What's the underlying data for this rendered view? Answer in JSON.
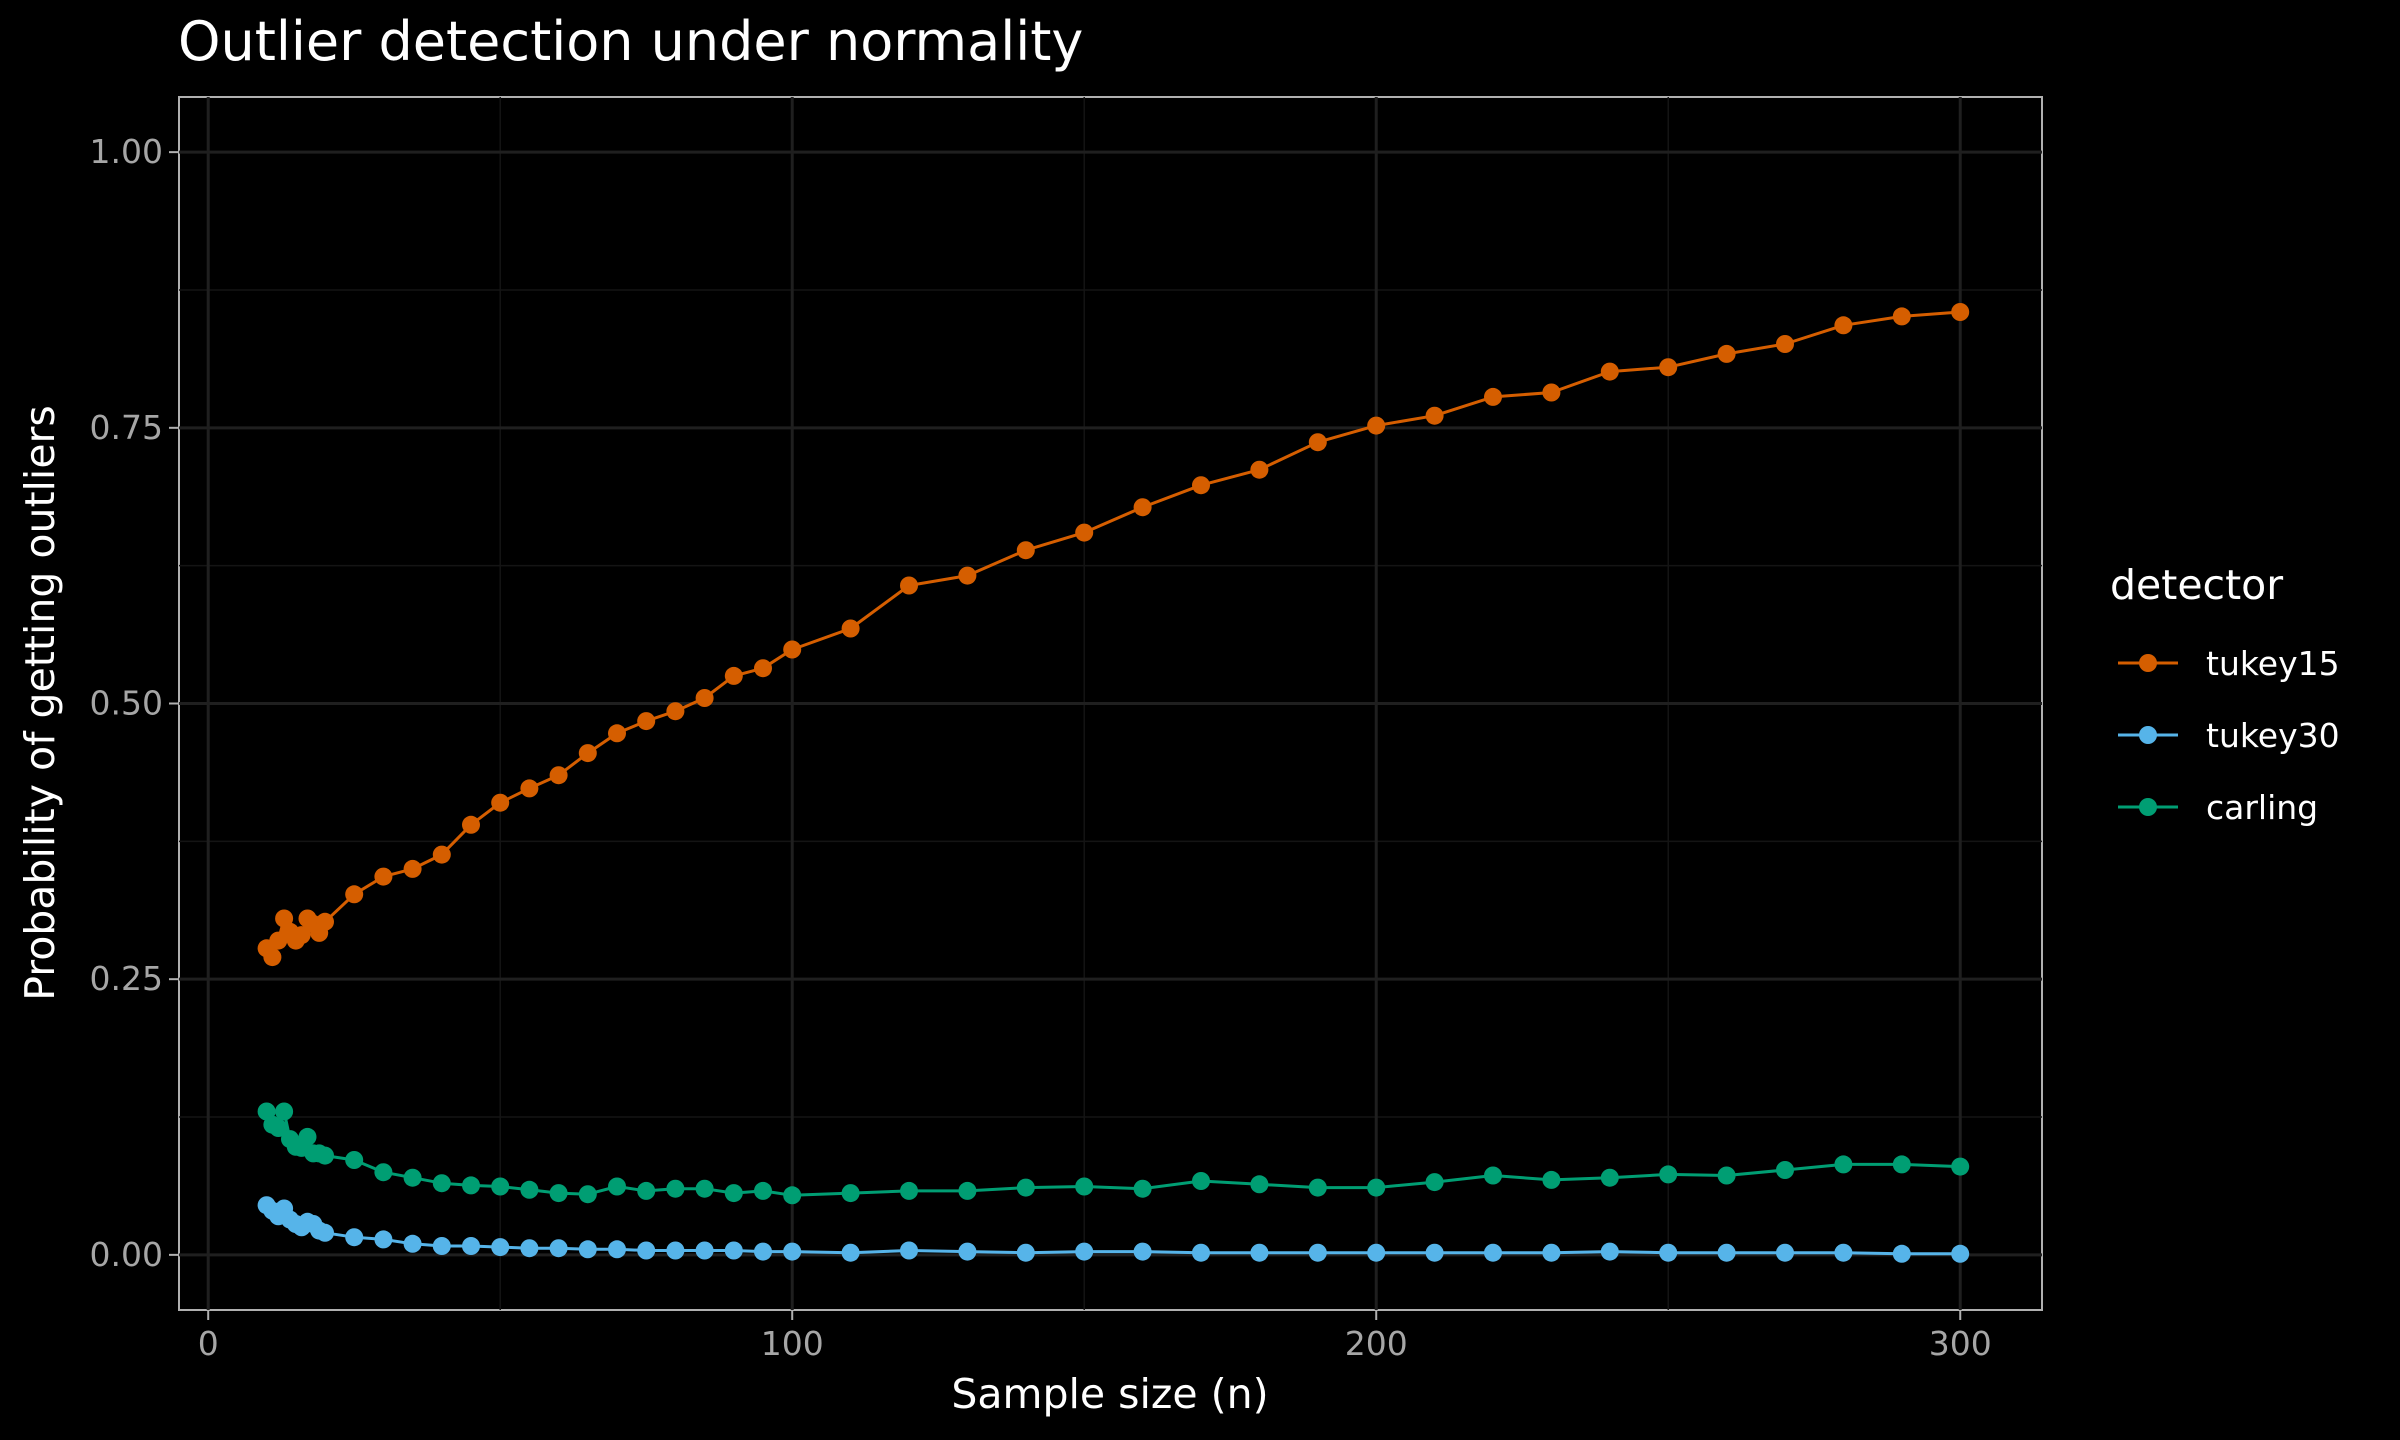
{
  "chart_data": {
    "type": "line",
    "title": "Outlier detection under normality",
    "xlabel": "Sample size (n)",
    "ylabel": "Probability of getting outliers",
    "xlim": [
      -5,
      314
    ],
    "ylim": [
      -0.05,
      1.05
    ],
    "x_ticks": [
      0,
      100,
      200,
      300
    ],
    "x_tick_labels": [
      "0",
      "100",
      "200",
      "300"
    ],
    "y_ticks": [
      0,
      0.25,
      0.5,
      0.75,
      1.0
    ],
    "y_tick_labels": [
      "0.00",
      "0.25",
      "0.50",
      "0.75",
      "1.00"
    ],
    "grid": true,
    "legend_title": "detector",
    "legend_position": "right",
    "x": [
      10,
      11,
      12,
      13,
      14,
      15,
      16,
      17,
      18,
      19,
      20,
      25,
      30,
      35,
      40,
      45,
      50,
      55,
      60,
      65,
      70,
      75,
      80,
      85,
      90,
      95,
      100,
      110,
      120,
      130,
      140,
      150,
      160,
      170,
      180,
      190,
      200,
      210,
      220,
      230,
      240,
      250,
      260,
      270,
      280,
      290,
      300
    ],
    "series": [
      {
        "name": "tukey15",
        "color": "#D55E00",
        "values": [
          0.278,
          0.27,
          0.285,
          0.305,
          0.293,
          0.285,
          0.29,
          0.305,
          0.3,
          0.292,
          0.302,
          0.327,
          0.343,
          0.35,
          0.363,
          0.39,
          0.41,
          0.423,
          0.435,
          0.455,
          0.473,
          0.484,
          0.493,
          0.505,
          0.525,
          0.532,
          0.549,
          0.568,
          0.607,
          0.616,
          0.639,
          0.655,
          0.678,
          0.698,
          0.712,
          0.737,
          0.752,
          0.761,
          0.778,
          0.782,
          0.801,
          0.805,
          0.817,
          0.826,
          0.843,
          0.851,
          0.855
        ]
      },
      {
        "name": "tukey30",
        "color": "#56B4E9",
        "values": [
          0.045,
          0.04,
          0.035,
          0.042,
          0.032,
          0.028,
          0.025,
          0.03,
          0.028,
          0.022,
          0.02,
          0.016,
          0.014,
          0.01,
          0.008,
          0.008,
          0.007,
          0.006,
          0.006,
          0.005,
          0.005,
          0.004,
          0.004,
          0.004,
          0.004,
          0.003,
          0.003,
          0.002,
          0.004,
          0.003,
          0.002,
          0.003,
          0.003,
          0.002,
          0.002,
          0.002,
          0.002,
          0.002,
          0.002,
          0.002,
          0.003,
          0.002,
          0.002,
          0.002,
          0.002,
          0.001,
          0.001
        ]
      },
      {
        "name": "carling",
        "color": "#009E73",
        "values": [
          0.13,
          0.118,
          0.115,
          0.13,
          0.105,
          0.098,
          0.097,
          0.107,
          0.092,
          0.092,
          0.09,
          0.086,
          0.075,
          0.07,
          0.065,
          0.063,
          0.062,
          0.059,
          0.056,
          0.055,
          0.062,
          0.058,
          0.06,
          0.06,
          0.056,
          0.058,
          0.054,
          0.056,
          0.058,
          0.058,
          0.061,
          0.062,
          0.06,
          0.067,
          0.064,
          0.061,
          0.061,
          0.066,
          0.072,
          0.068,
          0.07,
          0.073,
          0.072,
          0.077,
          0.082,
          0.082,
          0.08
        ]
      }
    ]
  }
}
